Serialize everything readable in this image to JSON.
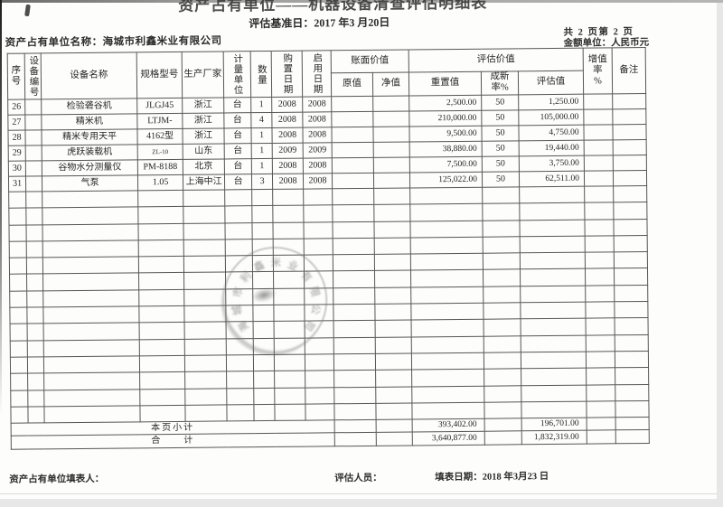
{
  "meta": {
    "title_partial": "资产占有单位——机器设备清查评估明细表",
    "base_date": "评估基准日：2017 年3 月20日",
    "page_count": "共 2 页第 2 页",
    "currency_unit": "金额单位：人民币元",
    "owner": "资产占有单位名称：海城市利鑫米业有限公司"
  },
  "table": {
    "headers": {
      "seq": "序号",
      "equip_no": "设备编号",
      "name": "设备名称",
      "model": "规格型号",
      "maker": "生产厂家",
      "unit": "计量单位",
      "qty": "数量",
      "purchase": "购置日期",
      "start": "启用日期",
      "book_group": "账面价值",
      "orig": "原值",
      "net": "净值",
      "appraise_group": "评估价值",
      "replace": "重置值",
      "newness": "成新率%",
      "appraised": "评估值",
      "inc_rate": "增值率\n%",
      "note": "备注"
    },
    "rows": [
      {
        "seq": "26",
        "name": "检验砻谷机",
        "model": "JLGJ45",
        "maker": "浙江",
        "unit": "台",
        "qty": "1",
        "purchase": "2008",
        "start": "2008",
        "replace": "2,500.00",
        "newness": "50",
        "appraised": "1,250.00"
      },
      {
        "seq": "27",
        "name": "精米机",
        "model": "LTJM-",
        "maker": "浙江",
        "unit": "台",
        "qty": "4",
        "purchase": "2008",
        "start": "2008",
        "replace": "210,000.00",
        "newness": "50",
        "appraised": "105,000.00"
      },
      {
        "seq": "28",
        "name": "精米专用天平",
        "model": "4162型",
        "maker": "浙江",
        "unit": "台",
        "qty": "1",
        "purchase": "2008",
        "start": "2008",
        "replace": "9,500.00",
        "newness": "50",
        "appraised": "4,750.00"
      },
      {
        "seq": "29",
        "name": "虎跃装载机",
        "model": "ZL-10",
        "maker": "山东",
        "unit": "台",
        "qty": "1",
        "purchase": "2009",
        "start": "2009",
        "replace": "38,880.00",
        "newness": "50",
        "appraised": "19,440.00"
      },
      {
        "seq": "30",
        "name": "谷物水分测量仪",
        "model": "PM-8188",
        "maker": "北京",
        "unit": "台",
        "qty": "1",
        "purchase": "2008",
        "start": "2008",
        "replace": "7,500.00",
        "newness": "50",
        "appraised": "3,750.00"
      },
      {
        "seq": "31",
        "name": "气泵",
        "model": "1.05",
        "maker": "上海中江",
        "unit": "台",
        "qty": "3",
        "purchase": "2008",
        "start": "2008",
        "replace": "125,022.00",
        "newness": "50",
        "appraised": "62,511.00"
      }
    ],
    "empty_row_count": 14,
    "subtotal": {
      "label": "本页小计",
      "replace": "393,402.00",
      "appraised": "196,701.00"
    },
    "total": {
      "label": "合　　计",
      "replace": "3,640,877.00",
      "appraised": "1,832,319.00"
    }
  },
  "footer": {
    "filler": "资产占有单位填表人：",
    "appraiser": "评估人员：",
    "fill_date": "填表日期：2018 年3月23 日"
  },
  "stamp": {
    "text": "海城市利鑫米业有限公司"
  }
}
